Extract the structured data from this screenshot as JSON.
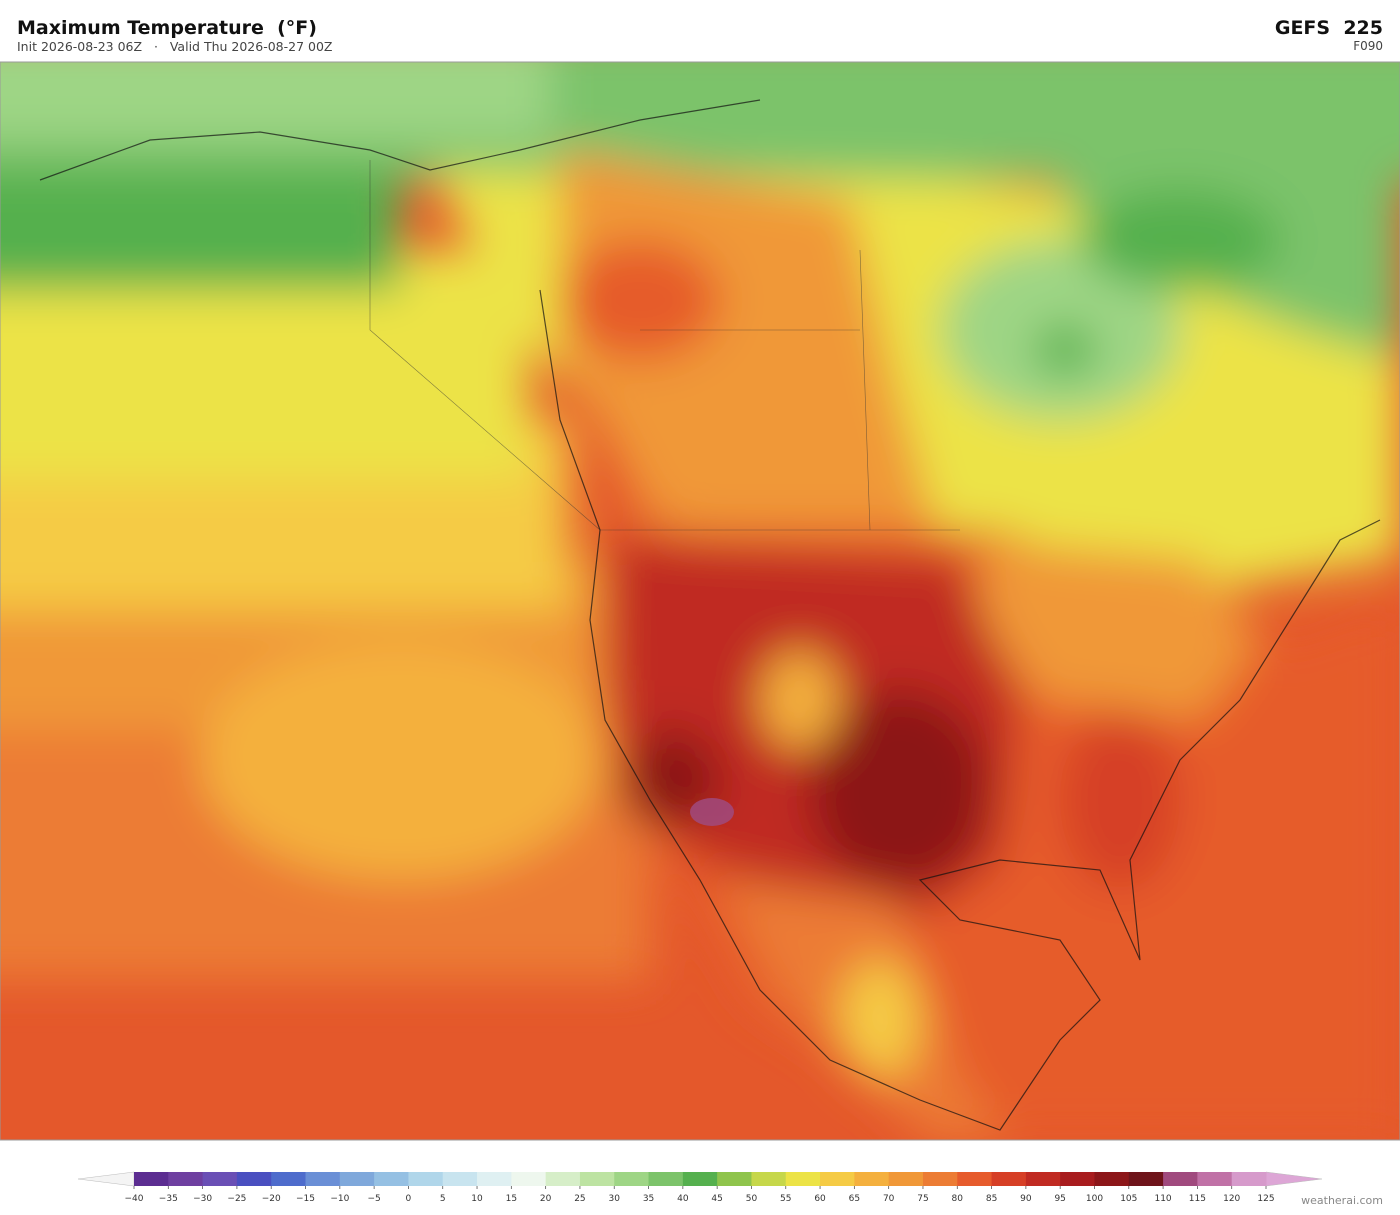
{
  "header": {
    "title": "Maximum Temperature  (°F)",
    "subtitle": "Init 2026-08-23 06Z   ·   Valid Thu 2026-08-27 00Z",
    "model": "GEFS  225",
    "forecast_hour": "F090"
  },
  "colorbar": {
    "ticks": [
      {
        "value": -40,
        "label": "−40"
      },
      {
        "value": -35,
        "label": "−35"
      },
      {
        "value": -30,
        "label": "−30"
      },
      {
        "value": -25,
        "label": "−25"
      },
      {
        "value": -20,
        "label": "−20"
      },
      {
        "value": -15,
        "label": "−15"
      },
      {
        "value": -10,
        "label": "−10"
      },
      {
        "value": -5,
        "label": "−5"
      },
      0,
      5,
      10,
      15,
      20,
      25,
      30,
      35,
      40,
      45,
      50,
      55,
      60,
      65,
      70,
      75,
      80,
      85,
      90,
      95,
      100,
      105,
      110,
      115,
      120,
      125
    ],
    "colors": [
      "#5c2d91",
      "#6e3fa0",
      "#6a4fb5",
      "#4a4fc0",
      "#4e6ccc",
      "#6a8fd6",
      "#7fa8db",
      "#95c0e3",
      "#b0d6ea",
      "#c8e4ef",
      "#dff0f2",
      "#eef7ee",
      "#d6eec8",
      "#bde3a2",
      "#9ed585",
      "#7cc36a",
      "#55b04e",
      "#8fc44c",
      "#c6d74a",
      "#ece346",
      "#f5cb45",
      "#f4b03e",
      "#f09838",
      "#ec7c34",
      "#e65b2c",
      "#d63f26",
      "#c02a22",
      "#a81c1e",
      "#8c1619",
      "#6e141a",
      "#a04a7e",
      "#c071a6",
      "#d69acb"
    ],
    "under_color": "#f4f4f4",
    "over_color": "#dda6d6"
  },
  "footer": {
    "credit": "weatherai.com"
  }
}
